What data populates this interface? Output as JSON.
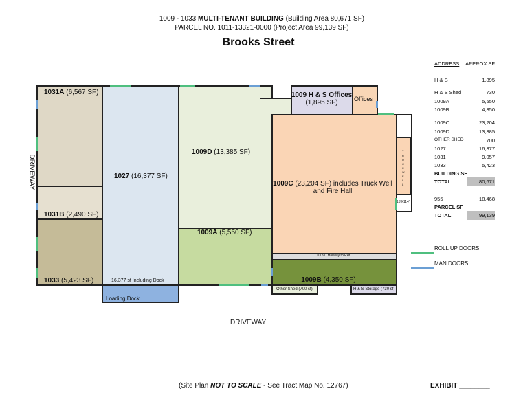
{
  "header": {
    "line1_pre": "1009 - 1033 ",
    "line1_bold": "MULTI-TENANT BUILDING",
    "line1_post": " (Building Area 80,671 SF)",
    "line2": "PARCEL NO. 1011-13321-0000 (Project Area 99,139 SF)",
    "street": "Brooks Street"
  },
  "units": {
    "u1031a": {
      "id": "1031A",
      "sf": "(6,567 SF)"
    },
    "u1031b": {
      "id": "1031B",
      "sf": "(2,490 SF)"
    },
    "u1033": {
      "id": "1033",
      "sf": "(5,423 SF)"
    },
    "u1027": {
      "id": "1027",
      "sf": "(16,377 SF)",
      "note": "16,377 sf Including Dock"
    },
    "dock": "Loading Dock",
    "u1009d": {
      "id": "1009D",
      "sf": "(13,385 SF)"
    },
    "u1009a": {
      "id": "1009A",
      "sf": "(5,550 SF)"
    },
    "hs_offices": {
      "id": "1009 H & S Offices",
      "sf": "(1,895 SF)"
    },
    "offices": "Offices",
    "u1009c": {
      "id": "1009C",
      "sf": "(23,204 SF) includes Truck Well",
      "line2": "and Fire Hall"
    },
    "hallway": "1009C Hallway to Exit",
    "u1009b": {
      "id": "1009B",
      "sf": "(4,350 SF)"
    },
    "other_shed": "Other Shed (700 sf)",
    "hs_storage": "H & S Storage (730 sf)",
    "truck_well": "TRUCKWELL",
    "dim": "15'X114'"
  },
  "labels": {
    "driveway_left": "DRIVEWAY",
    "driveway_bottom": "DRIVEWAY"
  },
  "table": {
    "headers": [
      "ADDRESS",
      "APPROX SF"
    ],
    "rows": [
      [
        "H & S",
        "1,895"
      ],
      [
        "H & S Shed",
        "730"
      ],
      [
        "1009A",
        "5,550"
      ],
      [
        "1009B",
        "4,350"
      ],
      [
        "1009C",
        "23,204"
      ],
      [
        "1009D",
        "13,385"
      ],
      [
        "OTHER SHED",
        "700"
      ],
      [
        "1027",
        "16,377"
      ],
      [
        "1031",
        "9,057"
      ],
      [
        "1033",
        "5,423"
      ]
    ],
    "building_label": "BUILDING SF",
    "building_total_label": "TOTAL",
    "building_total": "80,671",
    "parcel_row": [
      "955",
      "18,468"
    ],
    "parcel_label": "PARCEL SF",
    "parcel_total_label": "TOTAL",
    "parcel_total": "99,139"
  },
  "legend": {
    "roll_up": "ROLL UP DOORS",
    "man": "MAN DOORS",
    "roll_up_color": "#4fbf7f",
    "man_color": "#6b9fd4"
  },
  "footer": {
    "pre": "(Site Plan ",
    "bold": "NOT TO SCALE",
    "post": " - See Tract Map No. 12767)",
    "exhibit": "EXHIBIT ________"
  }
}
